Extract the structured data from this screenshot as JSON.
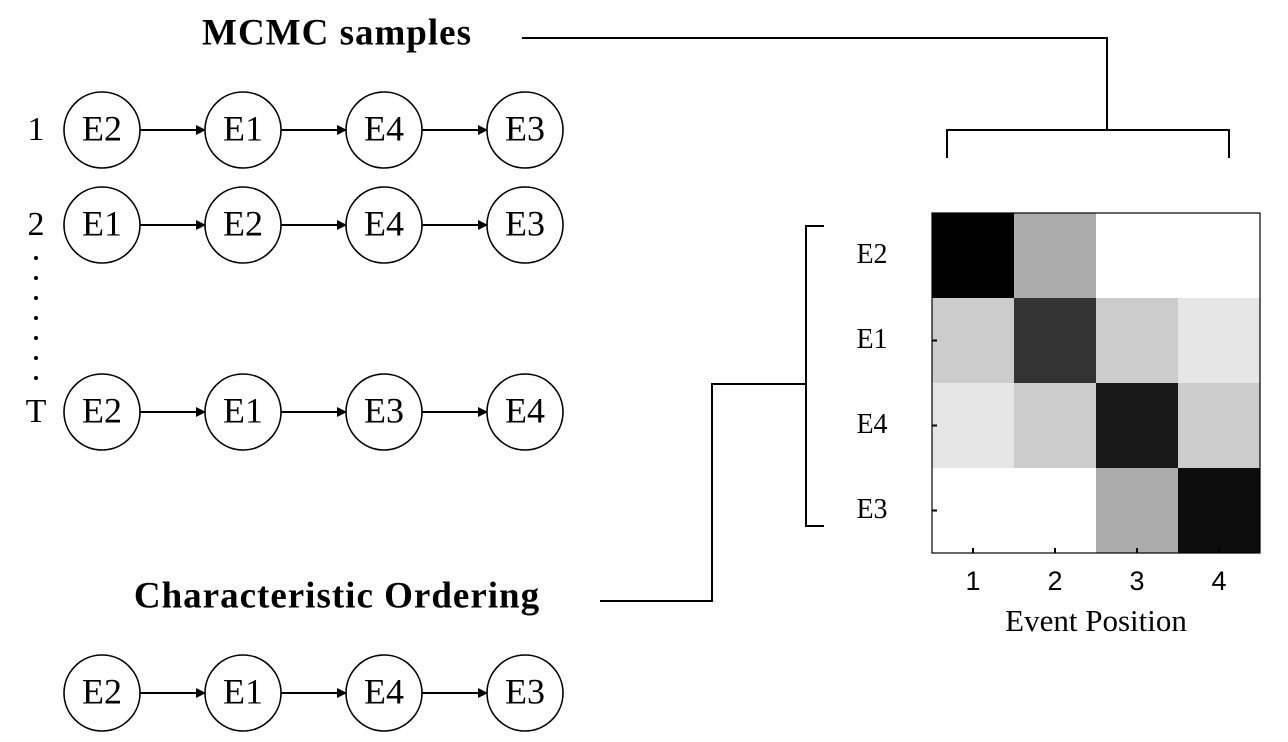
{
  "samples": {
    "title": "MCMC samples",
    "rows": [
      {
        "label": "1",
        "nodes": [
          "E2",
          "E1",
          "E4",
          "E3"
        ]
      },
      {
        "label": "2",
        "nodes": [
          "E1",
          "E2",
          "E4",
          "E3"
        ]
      },
      {
        "label": "T",
        "nodes": [
          "E2",
          "E1",
          "E3",
          "E4"
        ]
      }
    ]
  },
  "ordering": {
    "title": "Characteristic Ordering",
    "nodes": [
      "E2",
      "E1",
      "E4",
      "E3"
    ]
  },
  "heatmap": {
    "row_labels": [
      "E2",
      "E1",
      "E4",
      "E3"
    ],
    "xticks": [
      1,
      2,
      3,
      4
    ],
    "xlabel": "Event Position",
    "values": [
      [
        1.0,
        0.33,
        0,
        0
      ],
      [
        0.2,
        0.8,
        0.2,
        0.1
      ],
      [
        0.1,
        0.2,
        0.9,
        0.2
      ],
      [
        0,
        0,
        0.33,
        0.95
      ]
    ]
  }
}
